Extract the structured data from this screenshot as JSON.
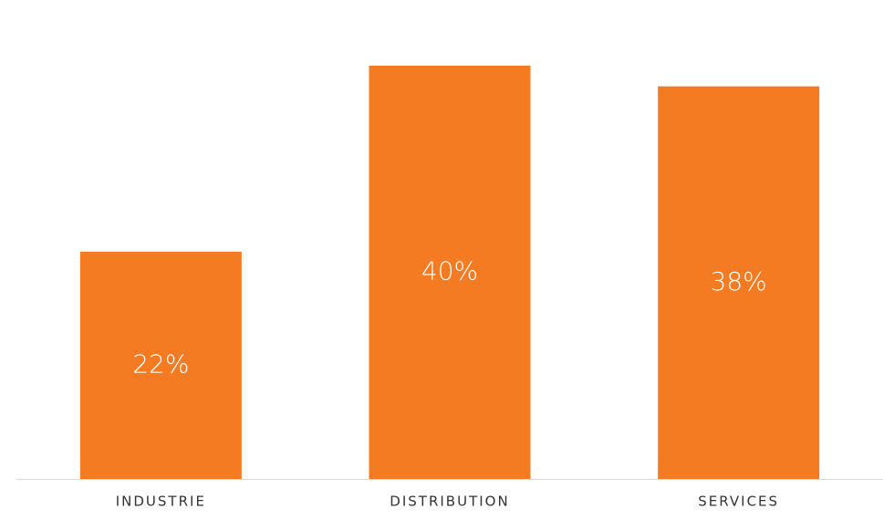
{
  "chart_data": {
    "type": "bar",
    "categories": [
      "INDUSTRIE",
      "DISTRIBUTION",
      "SERVICES"
    ],
    "values": [
      22,
      40,
      38
    ],
    "value_labels": [
      "22%",
      "40%",
      "38%"
    ],
    "color": "#f57b22"
  }
}
